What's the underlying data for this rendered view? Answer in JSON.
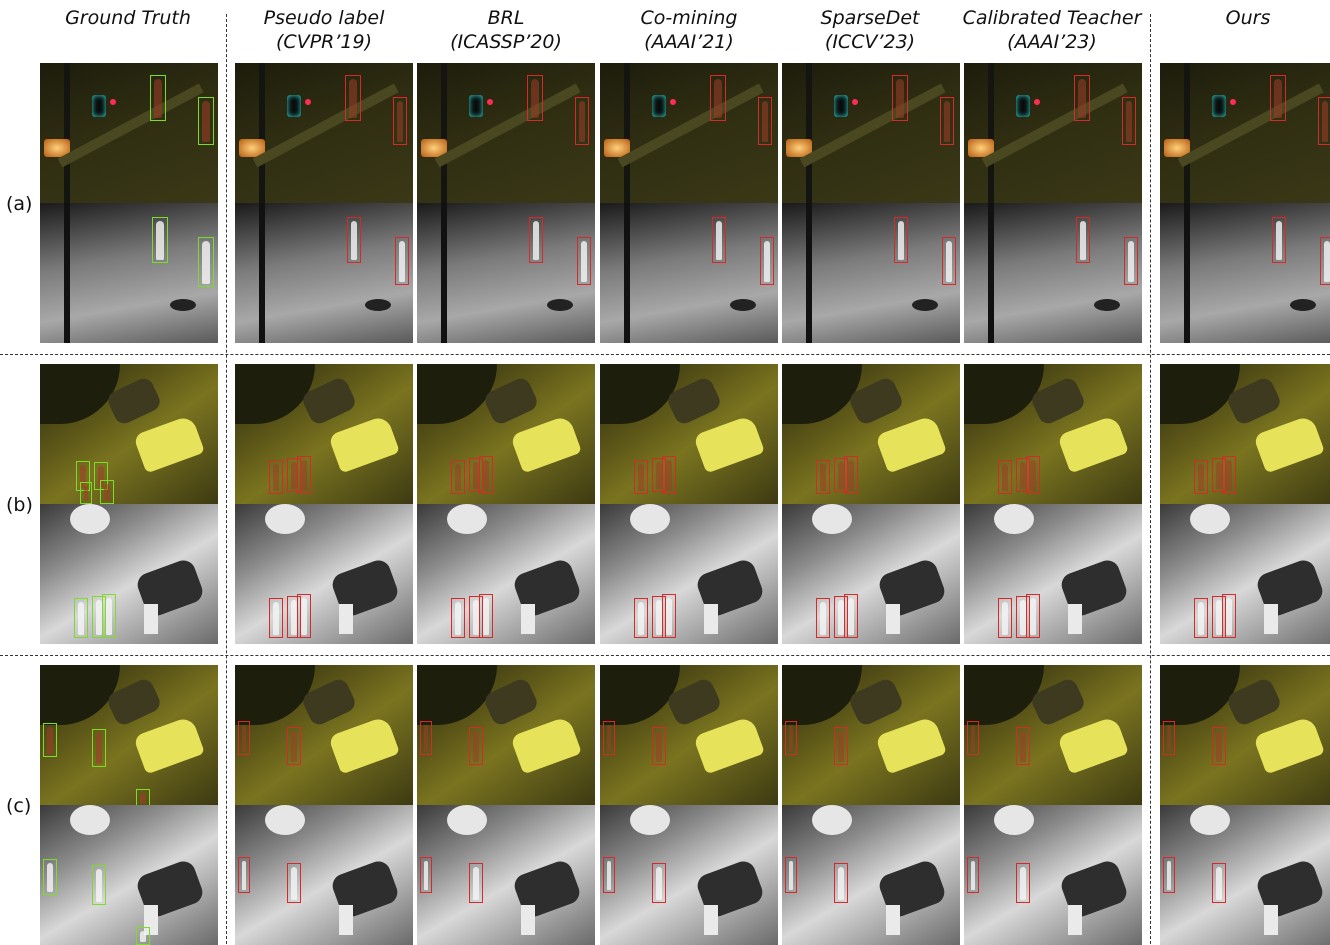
{
  "columns": [
    {
      "key": "gt",
      "line1": "Ground Truth",
      "line2": ""
    },
    {
      "key": "pl",
      "line1": "Pseudo label",
      "line2": "(CVPR’19)"
    },
    {
      "key": "brl",
      "line1": "BRL",
      "line2": "(ICASSP’20)"
    },
    {
      "key": "cm",
      "line1": "Co-mining",
      "line2": "(AAAI’21)"
    },
    {
      "key": "sd",
      "line1": "SparseDet",
      "line2": "(ICCV’23)"
    },
    {
      "key": "ct",
      "line1": "Calibrated Teacher",
      "line2": "(AAAI’23)"
    },
    {
      "key": "ours",
      "line1": "Ours",
      "line2": ""
    }
  ],
  "rows": [
    {
      "key": "a",
      "label": "(a)"
    },
    {
      "key": "b",
      "label": "(b)"
    },
    {
      "key": "c",
      "label": "(c)"
    }
  ],
  "colors": {
    "ground_truth_box": "#7ddc2a",
    "prediction_box": "#d62a2a",
    "rgb_night_a": "#2b2a12",
    "thermal_light": "#c9c9c9",
    "rgb_street": "#6b6520",
    "car_yellow": "#e6e35a"
  }
}
